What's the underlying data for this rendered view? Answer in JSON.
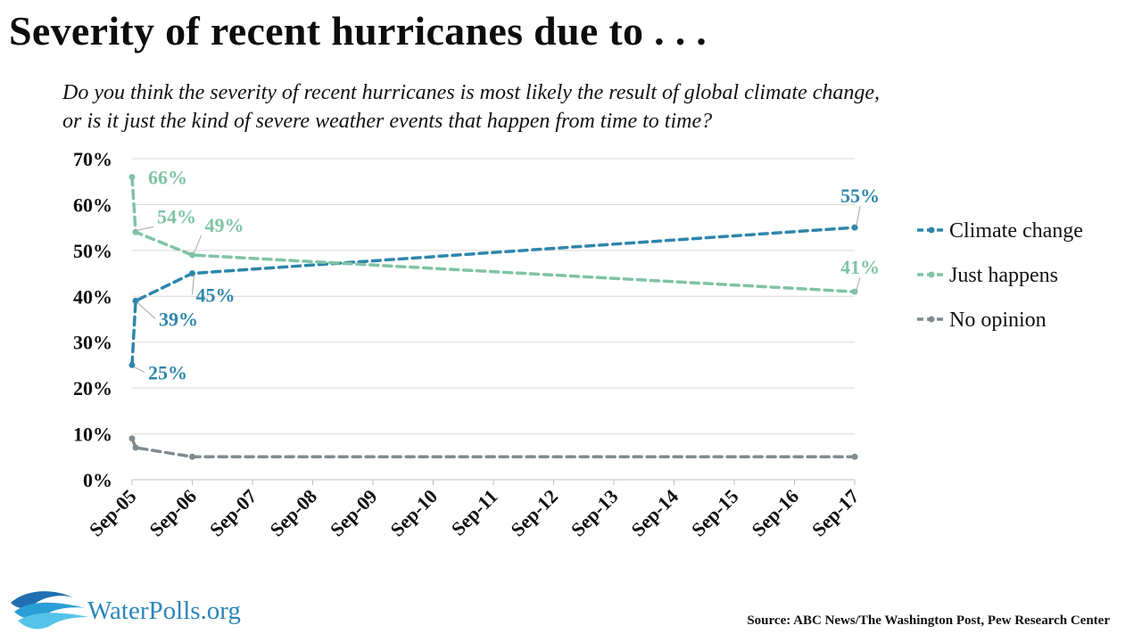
{
  "header": {
    "title": "Severity of recent hurricanes due to . . .",
    "subtitle_line1": "Do you think the severity of recent hurricanes is most likely the result of global climate change,",
    "subtitle_line2": "or is it just the kind of severe weather events that happen from time to time?"
  },
  "footer": {
    "logo_text": "WaterPolls.org",
    "source": "Source: ABC News/The Washington Post, Pew Research Center"
  },
  "chart_data": {
    "type": "line",
    "x_tick_labels": [
      "Sep-05",
      "Sep-06",
      "Sep-07",
      "Sep-08",
      "Sep-09",
      "Sep-10",
      "Sep-11",
      "Sep-12",
      "Sep-13",
      "Sep-14",
      "Sep-15",
      "Sep-16",
      "Sep-17"
    ],
    "y_tick_labels": [
      "0%",
      "10%",
      "20%",
      "30%",
      "40%",
      "50%",
      "60%",
      "70%"
    ],
    "ylim": [
      0,
      70
    ],
    "grid": true,
    "legend_position": "right",
    "series": [
      {
        "name": "Climate change",
        "color": "#2e86ab",
        "points": [
          {
            "x": "Sep-05",
            "y": 25,
            "label": "25%"
          },
          {
            "x": "Sep-05",
            "y": 39,
            "label": "39%"
          },
          {
            "x": "Sep-06",
            "y": 45,
            "label": "45%"
          },
          {
            "x": "Sep-17",
            "y": 55,
            "label": "55%"
          }
        ]
      },
      {
        "name": "Just happens",
        "color": "#7fc3a4",
        "points": [
          {
            "x": "Sep-05",
            "y": 66,
            "label": "66%"
          },
          {
            "x": "Sep-05",
            "y": 54,
            "label": "54%"
          },
          {
            "x": "Sep-06",
            "y": 49,
            "label": "49%"
          },
          {
            "x": "Sep-17",
            "y": 41,
            "label": "41%"
          }
        ]
      },
      {
        "name": "No opinion",
        "color": "#7f8b8f",
        "points": [
          {
            "x": "Sep-05",
            "y": 9,
            "label": ""
          },
          {
            "x": "Sep-05",
            "y": 7,
            "label": ""
          },
          {
            "x": "Sep-06",
            "y": 5,
            "label": ""
          },
          {
            "x": "Sep-17",
            "y": 5,
            "label": ""
          }
        ]
      }
    ]
  }
}
